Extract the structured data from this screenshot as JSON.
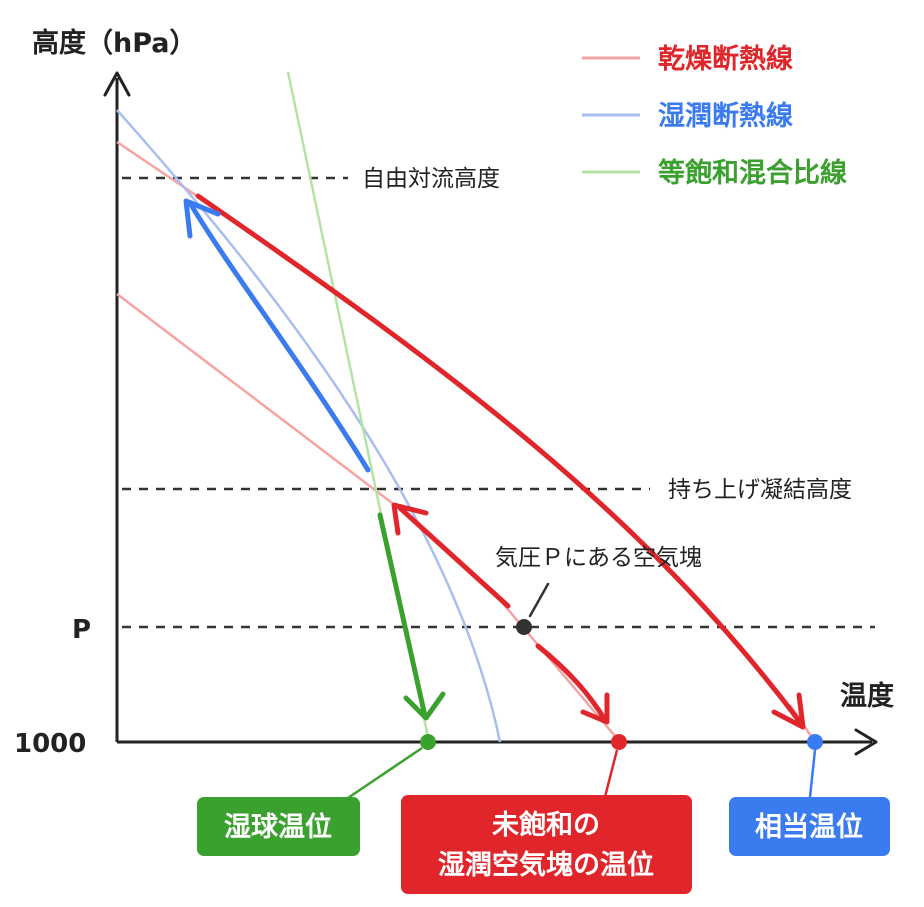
{
  "axes": {
    "y_label": "高度（hPa）",
    "x_label": "温度",
    "y_tick_p": "P",
    "y_tick_1000": "1000"
  },
  "legend": [
    {
      "label": "乾燥断熱線",
      "color": "#f5a3a3",
      "text_color": "#e0262a"
    },
    {
      "label": "湿潤断熱線",
      "color": "#a9bfee",
      "text_color": "#3a7bf0"
    },
    {
      "label": "等飽和混合比線",
      "color": "#b4e3a6",
      "text_color": "#3aa02e"
    }
  ],
  "levels": {
    "lfc": "自由対流高度",
    "lcl": "持ち上げ凝結高度"
  },
  "annotations": {
    "parcel": "気圧Ｐにある空気塊"
  },
  "boxes": {
    "wet_bulb": "湿球温位",
    "unsat_line1": "未飽和の",
    "unsat_line2": "湿潤空気塊の温位",
    "equivalent": "相当温位"
  },
  "colors": {
    "dry": "#e0262a",
    "moist": "#3a7bf0",
    "mix": "#3aa02e",
    "dry_light": "#f5a3a3",
    "moist_light": "#a9bfee",
    "mix_light": "#b4e3a6",
    "axis": "#222222",
    "dashed": "#333333"
  }
}
